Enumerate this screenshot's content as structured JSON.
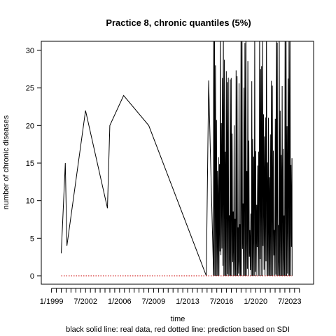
{
  "chart_data": {
    "type": "line",
    "title": "Practice 8, chronic quantiles (5%)",
    "xlabel": "time",
    "ylabel": "number of chronic diseases",
    "caption": "black solid line: real data, red dotted line: prediction based on SDI",
    "ylim": [
      0,
      30
    ],
    "y_ticks": [
      0,
      5,
      10,
      15,
      20,
      25,
      30
    ],
    "x_tick_labels": [
      "1/1999",
      "7/2002",
      "1/2006",
      "7/2009",
      "1/2013",
      "7/2016",
      "1/2020",
      "7/2023"
    ],
    "xlim": [
      "1998-09",
      "2025-03"
    ],
    "grid": false,
    "series": [
      {
        "line_style": "solid",
        "color": "#000000",
        "points": [
          [
            "2000-01",
            3
          ],
          [
            "2000-06",
            15
          ],
          [
            "2000-08",
            4
          ],
          [
            "2002-07",
            22
          ],
          [
            "2004-10",
            9
          ],
          [
            "2005-01",
            20
          ],
          [
            "2006-06",
            24
          ],
          [
            "2009-01",
            20
          ],
          [
            "2014-12",
            0
          ],
          [
            "2015-03",
            26
          ],
          [
            "2015-05",
            17
          ]
        ],
        "dense_segment": {
          "from": "2015-09",
          "to": "2023-10",
          "min": 0,
          "max": 31,
          "note_levels": [
            4,
            8,
            15,
            20,
            27,
            31
          ]
        }
      },
      {
        "line_style": "dotted",
        "color": "#cc0000",
        "points": [
          [
            "2000-01",
            0
          ],
          [
            "2023-10",
            0
          ]
        ]
      }
    ]
  }
}
